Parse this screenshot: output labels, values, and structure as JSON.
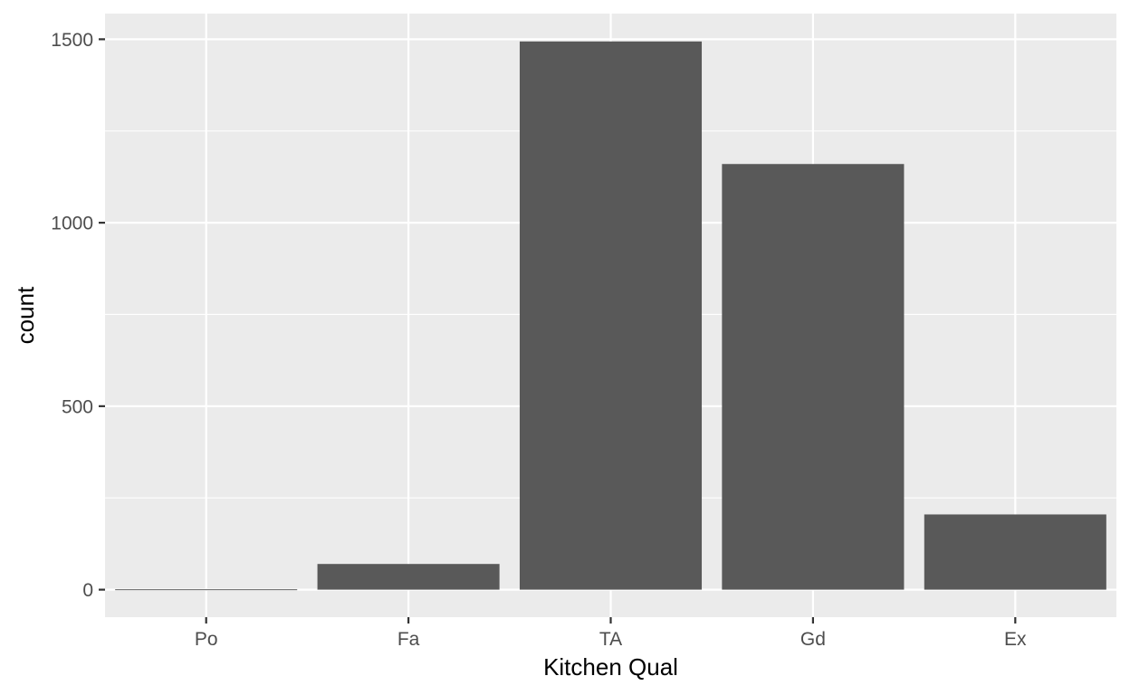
{
  "chart_data": {
    "type": "bar",
    "xlabel": "Kitchen Qual",
    "ylabel": "count",
    "categories": [
      "Po",
      "Fa",
      "TA",
      "Gd",
      "Ex"
    ],
    "values": [
      1,
      70,
      1494,
      1160,
      205
    ],
    "ylim": [
      -75,
      1570
    ],
    "yticks": [
      0,
      500,
      1000,
      1500
    ],
    "yticks_minor": [
      250,
      750,
      1250
    ],
    "grid": true,
    "bar_color": "#595959",
    "panel_color": "#ebebeb",
    "grid_color": "#ffffff",
    "tick_color": "#333333"
  }
}
